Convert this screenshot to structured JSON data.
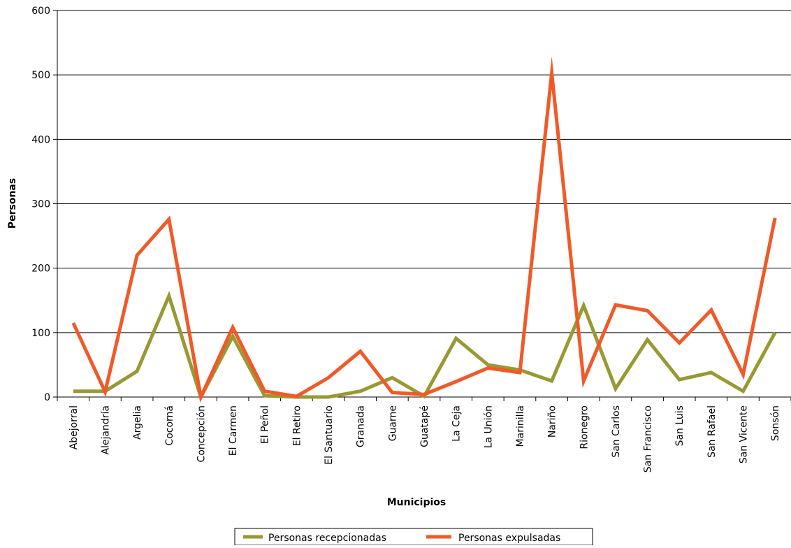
{
  "chart_data": {
    "type": "line",
    "title": "",
    "xlabel": "Municipios",
    "ylabel": "Personas",
    "ylim": [
      0,
      600
    ],
    "yticks": [
      0,
      100,
      200,
      300,
      400,
      500,
      600
    ],
    "grid": true,
    "legend_position": "bottom",
    "categories": [
      "Abejorral",
      "Alejandría",
      "Argelia",
      "Cocorná",
      "Concepción",
      "El Carmen",
      "El Peñol",
      "El Retiro",
      "El Santuario",
      "Granada",
      "Guarne",
      "Guatapé",
      "La Ceja",
      "La Unión",
      "Marinilla",
      "Nariño",
      "Rionegro",
      "San Carlos",
      "San Francisco",
      "San Luis",
      "San Rafael",
      "San Vicente",
      "Sonsón"
    ],
    "series": [
      {
        "name": "Personas recepcionadas",
        "color": "#999933",
        "values": [
          9,
          9,
          40,
          157,
          0,
          94,
          2,
          0,
          0,
          9,
          30,
          1,
          91,
          50,
          42,
          25,
          142,
          13,
          89,
          27,
          38,
          9,
          100
        ]
      },
      {
        "name": "Personas expulsadas",
        "color": "#f05a28",
        "values": [
          115,
          8,
          220,
          276,
          0,
          108,
          9,
          1,
          30,
          71,
          7,
          4,
          24,
          45,
          38,
          503,
          25,
          143,
          134,
          84,
          135,
          35,
          278
        ]
      }
    ]
  }
}
